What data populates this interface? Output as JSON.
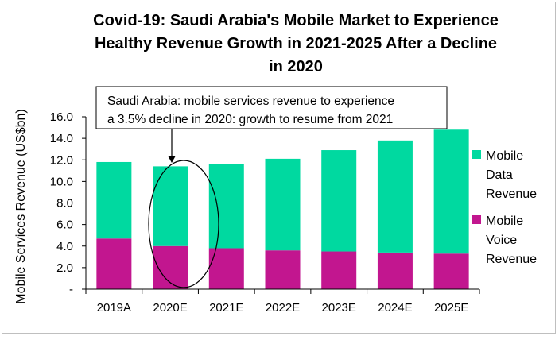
{
  "chart_data": {
    "type": "bar",
    "stacked": true,
    "title_lines": [
      "Covid-19: Saudi Arabia's Mobile Market to Experience",
      "Healthy Revenue Growth in 2021-2025 After a Decline",
      "in 2020"
    ],
    "ylabel": "Mobile Services Revenue (US$bn)",
    "xlabel": "",
    "ylim": [
      0,
      16
    ],
    "yticks": [
      "-",
      "2.0",
      "4.0",
      "6.0",
      "8.0",
      "10.0",
      "12.0",
      "14.0",
      "16.0"
    ],
    "categories": [
      "2019A",
      "2020E",
      "2021E",
      "2022E",
      "2023E",
      "2024E",
      "2025E"
    ],
    "series": [
      {
        "name": "Mobile Voice Revenue",
        "name_lines": [
          "Mobile",
          "Voice",
          "Revenue"
        ],
        "color": "#c2168f",
        "values": [
          4.7,
          4.0,
          3.8,
          3.6,
          3.5,
          3.4,
          3.3
        ]
      },
      {
        "name": "Mobile Data Revenue",
        "name_lines": [
          "Mobile",
          "Data",
          "Revenue"
        ],
        "color": "#00d9a0",
        "values": [
          7.1,
          7.4,
          7.8,
          8.5,
          9.4,
          10.4,
          11.5
        ]
      }
    ],
    "legend_position": "right",
    "grid": false,
    "annotation": {
      "lines": [
        "Saudi Arabia: mobile services revenue to experience",
        "a 3.5% decline in 2020: growth to resume from 2021"
      ],
      "target_category": "2020E"
    }
  }
}
